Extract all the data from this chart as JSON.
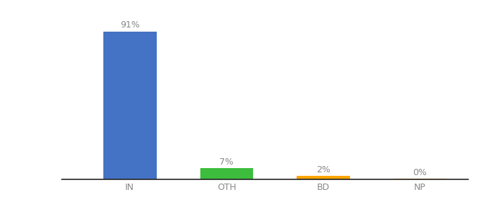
{
  "categories": [
    "IN",
    "OTH",
    "BD",
    "NP"
  ],
  "values": [
    91,
    7,
    2,
    0.3
  ],
  "labels": [
    "91%",
    "7%",
    "2%",
    "0%"
  ],
  "bar_colors": [
    "#4472C4",
    "#3DBD3D",
    "#FFA500",
    "#FFA500"
  ],
  "background_color": "#ffffff",
  "ylim": [
    0,
    100
  ],
  "label_fontsize": 9,
  "tick_fontsize": 9,
  "bar_width": 0.55,
  "label_color": "#888888",
  "tick_color": "#888888"
}
